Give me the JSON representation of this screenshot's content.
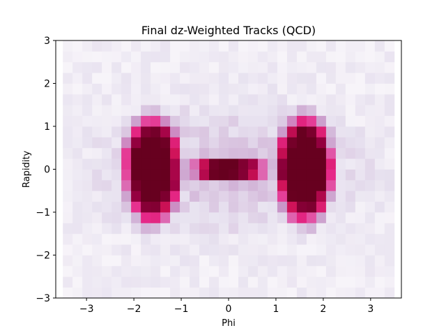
{
  "chart_data": {
    "type": "heatmap",
    "title": "Final dz-Weighted Tracks (QCD)",
    "xlabel": "Phi",
    "ylabel": "Rapidity",
    "xlim": [
      -3.65,
      3.65
    ],
    "ylim": [
      -3.0,
      3.0
    ],
    "xticks": [
      -3,
      -2,
      -1,
      0,
      1,
      2,
      3
    ],
    "yticks": [
      -3,
      -2,
      -1,
      0,
      1,
      2,
      3
    ],
    "xtick_labels": [
      "−3",
      "−2",
      "−1",
      "0",
      "1",
      "2",
      "3"
    ],
    "ytick_labels": [
      "−3",
      "−2",
      "−1",
      "0",
      "1",
      "2",
      "3"
    ],
    "bins": {
      "x": 34,
      "y": 24
    },
    "colormap": "PuRd",
    "colors": {
      "low": "#f7f4f9",
      "mid": "#e7298a",
      "high": "#67001f"
    },
    "description_note": "",
    "x_extent": [
      -3.5,
      3.5
    ],
    "y_extent": [
      -3.0,
      3.0
    ],
    "hot_lobes": [
      {
        "phi_center": -1.6,
        "rapidity_center": 0.0
      },
      {
        "phi_center": 1.6,
        "rapidity_center": 0.0
      }
    ],
    "bridge": {
      "phi_range": [
        -0.35,
        0.35
      ],
      "rapidity_range": [
        -0.3,
        0.3
      ]
    },
    "grid": false,
    "legend": "none"
  }
}
